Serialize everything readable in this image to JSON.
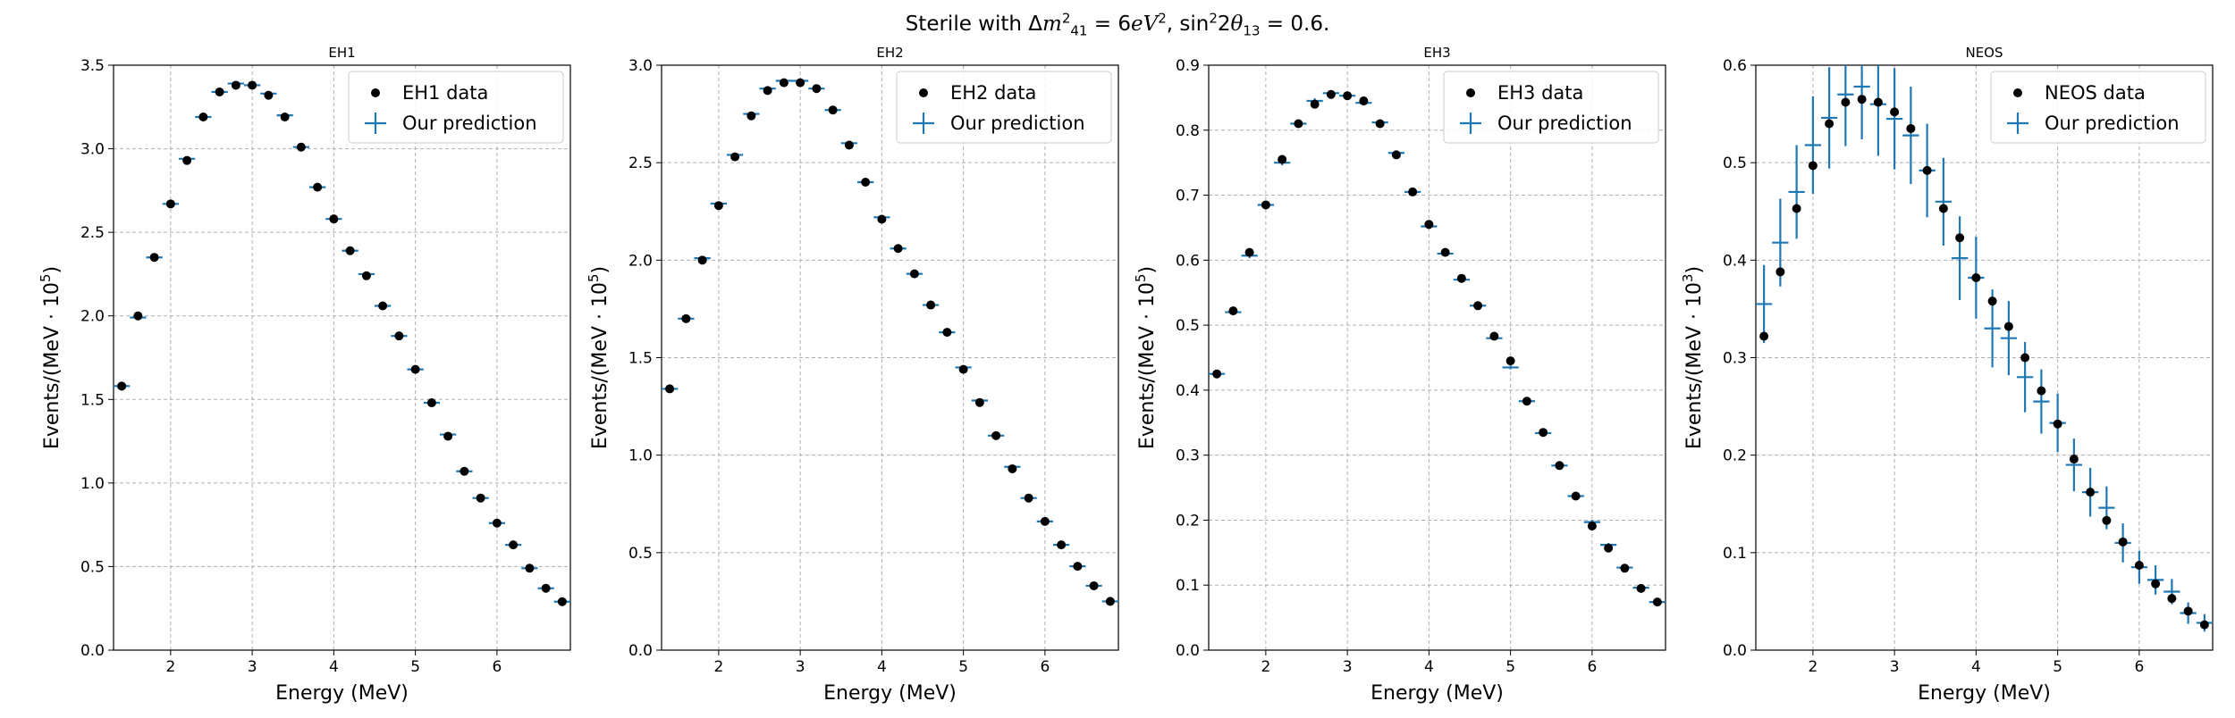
{
  "figure": {
    "suptitle": {
      "prefix": "Sterile with Δ",
      "m": "m",
      "m_sup": "2",
      "m_sub": "41",
      "mid": " = 6",
      "ev": "eV",
      "ev_sup": "2",
      "sep": ", sin",
      "sin_sup": "2",
      "theta_pre": "2",
      "theta": "θ",
      "theta_sub": "13",
      "suffix": " = 0.6."
    }
  },
  "colors": {
    "data_marker": "#000000",
    "prediction": "#1f77b4",
    "grid": "#b0b0b0"
  },
  "chart_data": [
    {
      "type": "scatter",
      "title": "EH1",
      "xlabel": "Energy (MeV)",
      "ylabel": "Events/(MeV · 10^5)",
      "ylabel_base": "Events/(MeV · 10",
      "ylabel_exp": "5",
      "ylabel_end": ")",
      "xlim": [
        1.3,
        6.9
      ],
      "ylim": [
        0,
        3.5
      ],
      "xticks": [
        2,
        3,
        4,
        5,
        6
      ],
      "yticks": [
        "0.0",
        "0.5",
        "1.0",
        "1.5",
        "2.0",
        "2.5",
        "3.0",
        "3.5"
      ],
      "grid": true,
      "legend_position": "upper right",
      "series": [
        {
          "name": "EH1 data",
          "kind": "points",
          "x": [
            1.4,
            1.6,
            1.8,
            2.0,
            2.2,
            2.4,
            2.6,
            2.8,
            3.0,
            3.2,
            3.4,
            3.6,
            3.8,
            4.0,
            4.2,
            4.4,
            4.6,
            4.8,
            5.0,
            5.2,
            5.4,
            5.6,
            5.8,
            6.0,
            6.2,
            6.4,
            6.6,
            6.8
          ],
          "y": [
            1.58,
            2.0,
            2.35,
            2.67,
            2.93,
            3.19,
            3.34,
            3.38,
            3.38,
            3.32,
            3.19,
            3.01,
            2.77,
            2.58,
            2.39,
            2.24,
            2.06,
            1.88,
            1.68,
            1.48,
            1.28,
            1.07,
            0.91,
            0.76,
            0.63,
            0.49,
            0.37,
            0.29
          ]
        },
        {
          "name": "Our prediction",
          "kind": "crosses",
          "x": [
            1.4,
            1.6,
            1.8,
            2.0,
            2.2,
            2.4,
            2.6,
            2.8,
            3.0,
            3.2,
            3.4,
            3.6,
            3.8,
            4.0,
            4.2,
            4.4,
            4.6,
            4.8,
            5.0,
            5.2,
            5.4,
            5.6,
            5.8,
            6.0,
            6.2,
            6.4,
            6.6,
            6.8
          ],
          "y": [
            1.58,
            1.99,
            2.35,
            2.67,
            2.94,
            3.19,
            3.34,
            3.39,
            3.38,
            3.33,
            3.2,
            3.01,
            2.77,
            2.58,
            2.39,
            2.25,
            2.06,
            1.88,
            1.68,
            1.48,
            1.29,
            1.07,
            0.91,
            0.76,
            0.63,
            0.49,
            0.37,
            0.29
          ],
          "xerr": 0.1,
          "yerr": [
            0.008,
            0.008,
            0.009,
            0.009,
            0.01,
            0.01,
            0.01,
            0.01,
            0.01,
            0.01,
            0.01,
            0.01,
            0.01,
            0.01,
            0.01,
            0.009,
            0.009,
            0.009,
            0.008,
            0.008,
            0.008,
            0.007,
            0.007,
            0.006,
            0.006,
            0.005,
            0.005,
            0.004
          ]
        }
      ]
    },
    {
      "type": "scatter",
      "title": "EH2",
      "xlabel": "Energy (MeV)",
      "ylabel": "Events/(MeV · 10^5)",
      "ylabel_base": "Events/(MeV · 10",
      "ylabel_exp": "5",
      "ylabel_end": ")",
      "xlim": [
        1.3,
        6.9
      ],
      "ylim": [
        0,
        3.0
      ],
      "xticks": [
        2,
        3,
        4,
        5,
        6
      ],
      "yticks": [
        "0.0",
        "0.5",
        "1.0",
        "1.5",
        "2.0",
        "2.5",
        "3.0"
      ],
      "grid": true,
      "legend_position": "upper right",
      "series": [
        {
          "name": "EH2 data",
          "kind": "points",
          "x": [
            1.4,
            1.6,
            1.8,
            2.0,
            2.2,
            2.4,
            2.6,
            2.8,
            3.0,
            3.2,
            3.4,
            3.6,
            3.8,
            4.0,
            4.2,
            4.4,
            4.6,
            4.8,
            5.0,
            5.2,
            5.4,
            5.6,
            5.8,
            6.0,
            6.2,
            6.4,
            6.6,
            6.8
          ],
          "y": [
            1.34,
            1.7,
            2.0,
            2.28,
            2.53,
            2.74,
            2.87,
            2.91,
            2.91,
            2.88,
            2.77,
            2.59,
            2.4,
            2.21,
            2.06,
            1.93,
            1.77,
            1.63,
            1.44,
            1.27,
            1.1,
            0.93,
            0.78,
            0.66,
            0.54,
            0.43,
            0.33,
            0.25
          ]
        },
        {
          "name": "Our prediction",
          "kind": "crosses",
          "x": [
            1.4,
            1.6,
            1.8,
            2.0,
            2.2,
            2.4,
            2.6,
            2.8,
            3.0,
            3.2,
            3.4,
            3.6,
            3.8,
            4.0,
            4.2,
            4.4,
            4.6,
            4.8,
            5.0,
            5.2,
            5.4,
            5.6,
            5.8,
            6.0,
            6.2,
            6.4,
            6.6,
            6.8
          ],
          "y": [
            1.34,
            1.7,
            2.01,
            2.29,
            2.54,
            2.75,
            2.88,
            2.92,
            2.92,
            2.88,
            2.77,
            2.6,
            2.4,
            2.22,
            2.06,
            1.93,
            1.77,
            1.63,
            1.45,
            1.28,
            1.1,
            0.94,
            0.78,
            0.66,
            0.54,
            0.43,
            0.33,
            0.25
          ],
          "xerr": 0.1,
          "yerr": [
            0.007,
            0.008,
            0.008,
            0.009,
            0.009,
            0.01,
            0.01,
            0.01,
            0.01,
            0.01,
            0.01,
            0.01,
            0.01,
            0.009,
            0.009,
            0.009,
            0.009,
            0.008,
            0.008,
            0.008,
            0.007,
            0.007,
            0.006,
            0.006,
            0.005,
            0.005,
            0.004,
            0.004
          ]
        }
      ]
    },
    {
      "type": "scatter",
      "title": "EH3",
      "xlabel": "Energy (MeV)",
      "ylabel": "Events/(MeV · 10^5)",
      "ylabel_base": "Events/(MeV · 10",
      "ylabel_exp": "5",
      "ylabel_end": ")",
      "xlim": [
        1.3,
        6.9
      ],
      "ylim": [
        0,
        0.9
      ],
      "xticks": [
        2,
        3,
        4,
        5,
        6
      ],
      "yticks": [
        "0.0",
        "0.1",
        "0.2",
        "0.3",
        "0.4",
        "0.5",
        "0.6",
        "0.7",
        "0.8",
        "0.9"
      ],
      "grid": true,
      "legend_position": "upper right",
      "series": [
        {
          "name": "EH3 data",
          "kind": "points",
          "x": [
            1.4,
            1.6,
            1.8,
            2.0,
            2.2,
            2.4,
            2.6,
            2.8,
            3.0,
            3.2,
            3.4,
            3.6,
            3.8,
            4.0,
            4.2,
            4.4,
            4.6,
            4.8,
            5.0,
            5.2,
            5.4,
            5.6,
            5.8,
            6.0,
            6.2,
            6.4,
            6.6,
            6.8
          ],
          "y": [
            0.425,
            0.522,
            0.612,
            0.685,
            0.755,
            0.81,
            0.84,
            0.855,
            0.853,
            0.845,
            0.81,
            0.762,
            0.705,
            0.655,
            0.612,
            0.572,
            0.53,
            0.483,
            0.445,
            0.383,
            0.335,
            0.284,
            0.237,
            0.191,
            0.157,
            0.126,
            0.095,
            0.074
          ]
        },
        {
          "name": "Our prediction",
          "kind": "crosses",
          "x": [
            1.4,
            1.6,
            1.8,
            2.0,
            2.2,
            2.4,
            2.6,
            2.8,
            3.0,
            3.2,
            3.4,
            3.6,
            3.8,
            4.0,
            4.2,
            4.4,
            4.6,
            4.8,
            5.0,
            5.2,
            5.4,
            5.6,
            5.8,
            6.0,
            6.2,
            6.4,
            6.6,
            6.8
          ],
          "y": [
            0.425,
            0.52,
            0.607,
            0.685,
            0.75,
            0.81,
            0.845,
            0.857,
            0.853,
            0.842,
            0.812,
            0.765,
            0.705,
            0.652,
            0.61,
            0.57,
            0.53,
            0.48,
            0.435,
            0.383,
            0.334,
            0.284,
            0.237,
            0.197,
            0.162,
            0.127,
            0.096,
            0.074
          ],
          "xerr": 0.1,
          "yerr": [
            0.004,
            0.004,
            0.004,
            0.004,
            0.004,
            0.004,
            0.004,
            0.004,
            0.004,
            0.004,
            0.004,
            0.004,
            0.004,
            0.004,
            0.004,
            0.004,
            0.004,
            0.003,
            0.003,
            0.003,
            0.003,
            0.003,
            0.003,
            0.003,
            0.003,
            0.002,
            0.002,
            0.002
          ]
        }
      ]
    },
    {
      "type": "scatter",
      "title": "NEOS",
      "xlabel": "Energy (MeV)",
      "ylabel": "Events/(MeV · 10^3)",
      "ylabel_base": "Events/(MeV · 10",
      "ylabel_exp": "3",
      "ylabel_end": ")",
      "xlim": [
        1.3,
        6.9
      ],
      "ylim": [
        0,
        0.6
      ],
      "xticks": [
        2,
        3,
        4,
        5,
        6
      ],
      "yticks": [
        "0.0",
        "0.1",
        "0.2",
        "0.3",
        "0.4",
        "0.5",
        "0.6"
      ],
      "grid": true,
      "legend_position": "upper right",
      "series": [
        {
          "name": "NEOS data",
          "kind": "points",
          "x": [
            1.4,
            1.6,
            1.8,
            2.0,
            2.2,
            2.4,
            2.6,
            2.8,
            3.0,
            3.2,
            3.4,
            3.6,
            3.8,
            4.0,
            4.2,
            4.4,
            4.6,
            4.8,
            5.0,
            5.2,
            5.4,
            5.6,
            5.8,
            6.0,
            6.2,
            6.4,
            6.6,
            6.8
          ],
          "y": [
            0.322,
            0.388,
            0.453,
            0.497,
            0.54,
            0.562,
            0.565,
            0.562,
            0.552,
            0.535,
            0.492,
            0.453,
            0.423,
            0.382,
            0.358,
            0.332,
            0.3,
            0.266,
            0.232,
            0.196,
            0.162,
            0.133,
            0.111,
            0.087,
            0.068,
            0.053,
            0.04,
            0.026
          ]
        },
        {
          "name": "Our prediction",
          "kind": "crosses",
          "x": [
            1.4,
            1.6,
            1.8,
            2.0,
            2.2,
            2.4,
            2.6,
            2.8,
            3.0,
            3.2,
            3.4,
            3.6,
            3.8,
            4.0,
            4.2,
            4.4,
            4.6,
            4.8,
            5.0,
            5.2,
            5.4,
            5.6,
            5.8,
            6.0,
            6.2,
            6.4,
            6.6,
            6.8
          ],
          "y": [
            0.355,
            0.418,
            0.47,
            0.518,
            0.546,
            0.57,
            0.578,
            0.56,
            0.545,
            0.528,
            0.492,
            0.46,
            0.402,
            0.382,
            0.33,
            0.32,
            0.28,
            0.255,
            0.233,
            0.19,
            0.162,
            0.146,
            0.11,
            0.085,
            0.072,
            0.06,
            0.038,
            0.028
          ],
          "xerr": 0.1,
          "yerr": [
            0.04,
            0.045,
            0.048,
            0.05,
            0.052,
            0.053,
            0.054,
            0.053,
            0.052,
            0.05,
            0.048,
            0.045,
            0.043,
            0.042,
            0.04,
            0.038,
            0.036,
            0.033,
            0.03,
            0.027,
            0.025,
            0.022,
            0.02,
            0.017,
            0.015,
            0.013,
            0.011,
            0.009
          ]
        }
      ]
    }
  ]
}
